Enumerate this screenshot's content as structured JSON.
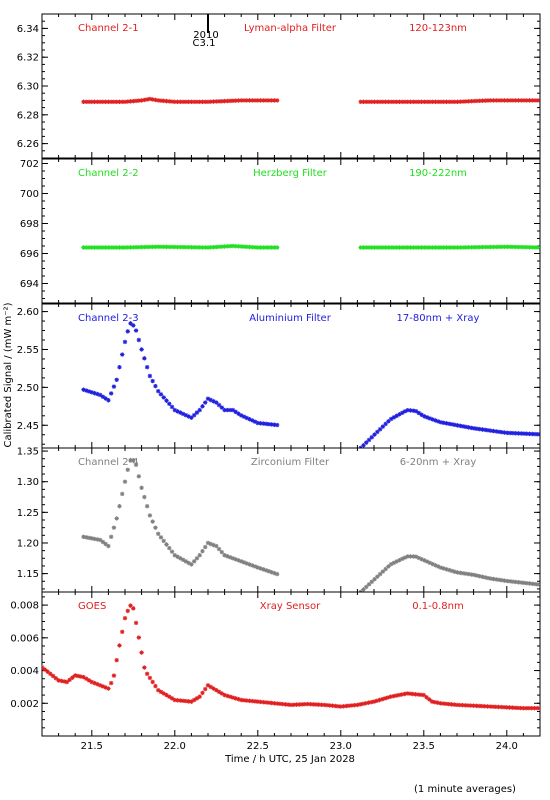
{
  "chart_data": {
    "type": "scatter",
    "xlabel": "Time / h UTC, 25 Jan 2028",
    "ylabel": "Calibrated Signal / (mW m⁻²)",
    "footnote": "(1 minute averages)",
    "xlim": [
      21.2,
      24.2
    ],
    "x_ticks": [
      "21.5",
      "22.0",
      "22.5",
      "23.0",
      "23.5",
      "24.0"
    ],
    "x_tick_values": [
      21.5,
      22.0,
      22.5,
      23.0,
      23.5,
      24.0
    ],
    "grid": false,
    "event_marker": {
      "x": 22.2,
      "label_line1": "2010",
      "label_line2": "C3.1"
    },
    "panels": [
      {
        "name": "Channel 2-1",
        "filter": "Lyman-alpha Filter",
        "band": "120-123nm",
        "color": "#e02020",
        "ylim": [
          6.25,
          6.35
        ],
        "y_ticks": [
          "6.26",
          "6.28",
          "6.30",
          "6.32",
          "6.34"
        ],
        "y_tick_values": [
          6.26,
          6.28,
          6.3,
          6.32,
          6.34
        ],
        "segments": [
          {
            "x": [
              21.45,
              21.6,
              21.7,
              21.8,
              21.85,
              21.9,
              22.0,
              22.2,
              22.4,
              22.63
            ],
            "y": [
              6.289,
              6.289,
              6.289,
              6.29,
              6.291,
              6.29,
              6.289,
              6.289,
              6.29,
              6.29
            ]
          },
          {
            "x": [
              23.12,
              23.3,
              23.5,
              23.7,
              23.9,
              24.1,
              24.2
            ],
            "y": [
              6.289,
              6.289,
              6.289,
              6.289,
              6.29,
              6.29,
              6.29
            ]
          }
        ]
      },
      {
        "name": "Channel 2-2",
        "filter": "Herzberg Filter",
        "band": "190-222nm",
        "color": "#20e020",
        "ylim": [
          692.7,
          702.3
        ],
        "y_ticks": [
          "694",
          "696",
          "698",
          "700",
          "702"
        ],
        "y_tick_values": [
          694,
          696,
          698,
          700,
          702
        ],
        "segments": [
          {
            "x": [
              21.45,
              21.7,
              21.9,
              22.2,
              22.35,
              22.5,
              22.63
            ],
            "y": [
              696.4,
              696.4,
              696.45,
              696.4,
              696.5,
              696.4,
              696.4
            ]
          },
          {
            "x": [
              23.12,
              23.4,
              23.7,
              24.0,
              24.2
            ],
            "y": [
              696.4,
              696.4,
              696.4,
              696.45,
              696.4
            ]
          }
        ]
      },
      {
        "name": "Channel 2-3",
        "filter": "Aluminium Filter",
        "band": "17-80nm + Xray",
        "color": "#2020e0",
        "ylim": [
          2.42,
          2.61
        ],
        "y_ticks": [
          "2.45",
          "2.50",
          "2.55",
          "2.60"
        ],
        "y_tick_values": [
          2.45,
          2.5,
          2.55,
          2.6
        ],
        "segments": [
          {
            "x": [
              21.45,
              21.55,
              21.6,
              21.65,
              21.7,
              21.73,
              21.76,
              21.8,
              21.85,
              21.9,
              22.0,
              22.1,
              22.15,
              22.2,
              22.25,
              22.3,
              22.35,
              22.4,
              22.5,
              22.63
            ],
            "y": [
              2.497,
              2.49,
              2.483,
              2.51,
              2.56,
              2.585,
              2.58,
              2.55,
              2.515,
              2.495,
              2.47,
              2.46,
              2.47,
              2.485,
              2.48,
              2.47,
              2.47,
              2.463,
              2.453,
              2.45
            ]
          },
          {
            "x": [
              23.12,
              23.2,
              23.3,
              23.4,
              23.45,
              23.5,
              23.6,
              23.7,
              23.8,
              23.9,
              24.0,
              24.1,
              24.2
            ],
            "y": [
              2.42,
              2.437,
              2.458,
              2.47,
              2.469,
              2.462,
              2.454,
              2.45,
              2.446,
              2.443,
              2.44,
              2.439,
              2.438
            ]
          }
        ]
      },
      {
        "name": "Channel 2-4",
        "filter": "Zirconium Filter",
        "band": "6-20nm + Xray",
        "color": "#808080",
        "ylim": [
          1.12,
          1.355
        ],
        "y_ticks": [
          "1.15",
          "1.20",
          "1.25",
          "1.30",
          "1.35"
        ],
        "y_tick_values": [
          1.15,
          1.2,
          1.25,
          1.3,
          1.35
        ],
        "segments": [
          {
            "x": [
              21.45,
              21.55,
              21.6,
              21.65,
              21.7,
              21.73,
              21.76,
              21.8,
              21.85,
              21.9,
              22.0,
              22.1,
              22.15,
              22.2,
              22.25,
              22.3,
              22.35,
              22.4,
              22.5,
              22.63
            ],
            "y": [
              1.21,
              1.205,
              1.195,
              1.24,
              1.3,
              1.335,
              1.335,
              1.29,
              1.245,
              1.215,
              1.18,
              1.165,
              1.18,
              1.2,
              1.195,
              1.18,
              1.175,
              1.17,
              1.16,
              1.148
            ]
          },
          {
            "x": [
              23.12,
              23.2,
              23.3,
              23.4,
              23.45,
              23.5,
              23.6,
              23.7,
              23.8,
              23.9,
              24.0,
              24.1,
              24.2
            ],
            "y": [
              1.12,
              1.14,
              1.165,
              1.178,
              1.178,
              1.172,
              1.16,
              1.152,
              1.148,
              1.142,
              1.138,
              1.135,
              1.132
            ]
          }
        ]
      },
      {
        "name": "GOES",
        "filter": "Xray Sensor",
        "band": "0.1-0.8nm",
        "color": "#e02020",
        "ylim": [
          0.0,
          0.0088
        ],
        "y_ticks": [
          "0.002",
          "0.004",
          "0.006",
          "0.008"
        ],
        "y_tick_values": [
          0.002,
          0.004,
          0.006,
          0.008
        ],
        "segments": [
          {
            "x": [
              21.2,
              21.25,
              21.3,
              21.35,
              21.4,
              21.45,
              21.5,
              21.55,
              21.6,
              21.63,
              21.66,
              21.7,
              21.73,
              21.75,
              21.78,
              21.82,
              21.9,
              22.0,
              22.1,
              22.15,
              22.2,
              22.25,
              22.3,
              22.4,
              22.5,
              22.6,
              22.7,
              22.8,
              22.9,
              23.0,
              23.1,
              23.2,
              23.3,
              23.4,
              23.5,
              23.55,
              23.6,
              23.7,
              23.8,
              23.9,
              24.0,
              24.1,
              24.2
            ],
            "y": [
              0.0042,
              0.0038,
              0.0034,
              0.0033,
              0.0037,
              0.0036,
              0.0033,
              0.0031,
              0.0029,
              0.0035,
              0.0052,
              0.0072,
              0.008,
              0.0078,
              0.0062,
              0.004,
              0.0028,
              0.0022,
              0.0021,
              0.0024,
              0.0031,
              0.0028,
              0.0025,
              0.0022,
              0.0021,
              0.002,
              0.0019,
              0.00195,
              0.0019,
              0.0018,
              0.0019,
              0.0021,
              0.0024,
              0.0026,
              0.0025,
              0.0021,
              0.002,
              0.0019,
              0.00185,
              0.0018,
              0.00175,
              0.0017,
              0.0017
            ]
          }
        ]
      }
    ]
  }
}
